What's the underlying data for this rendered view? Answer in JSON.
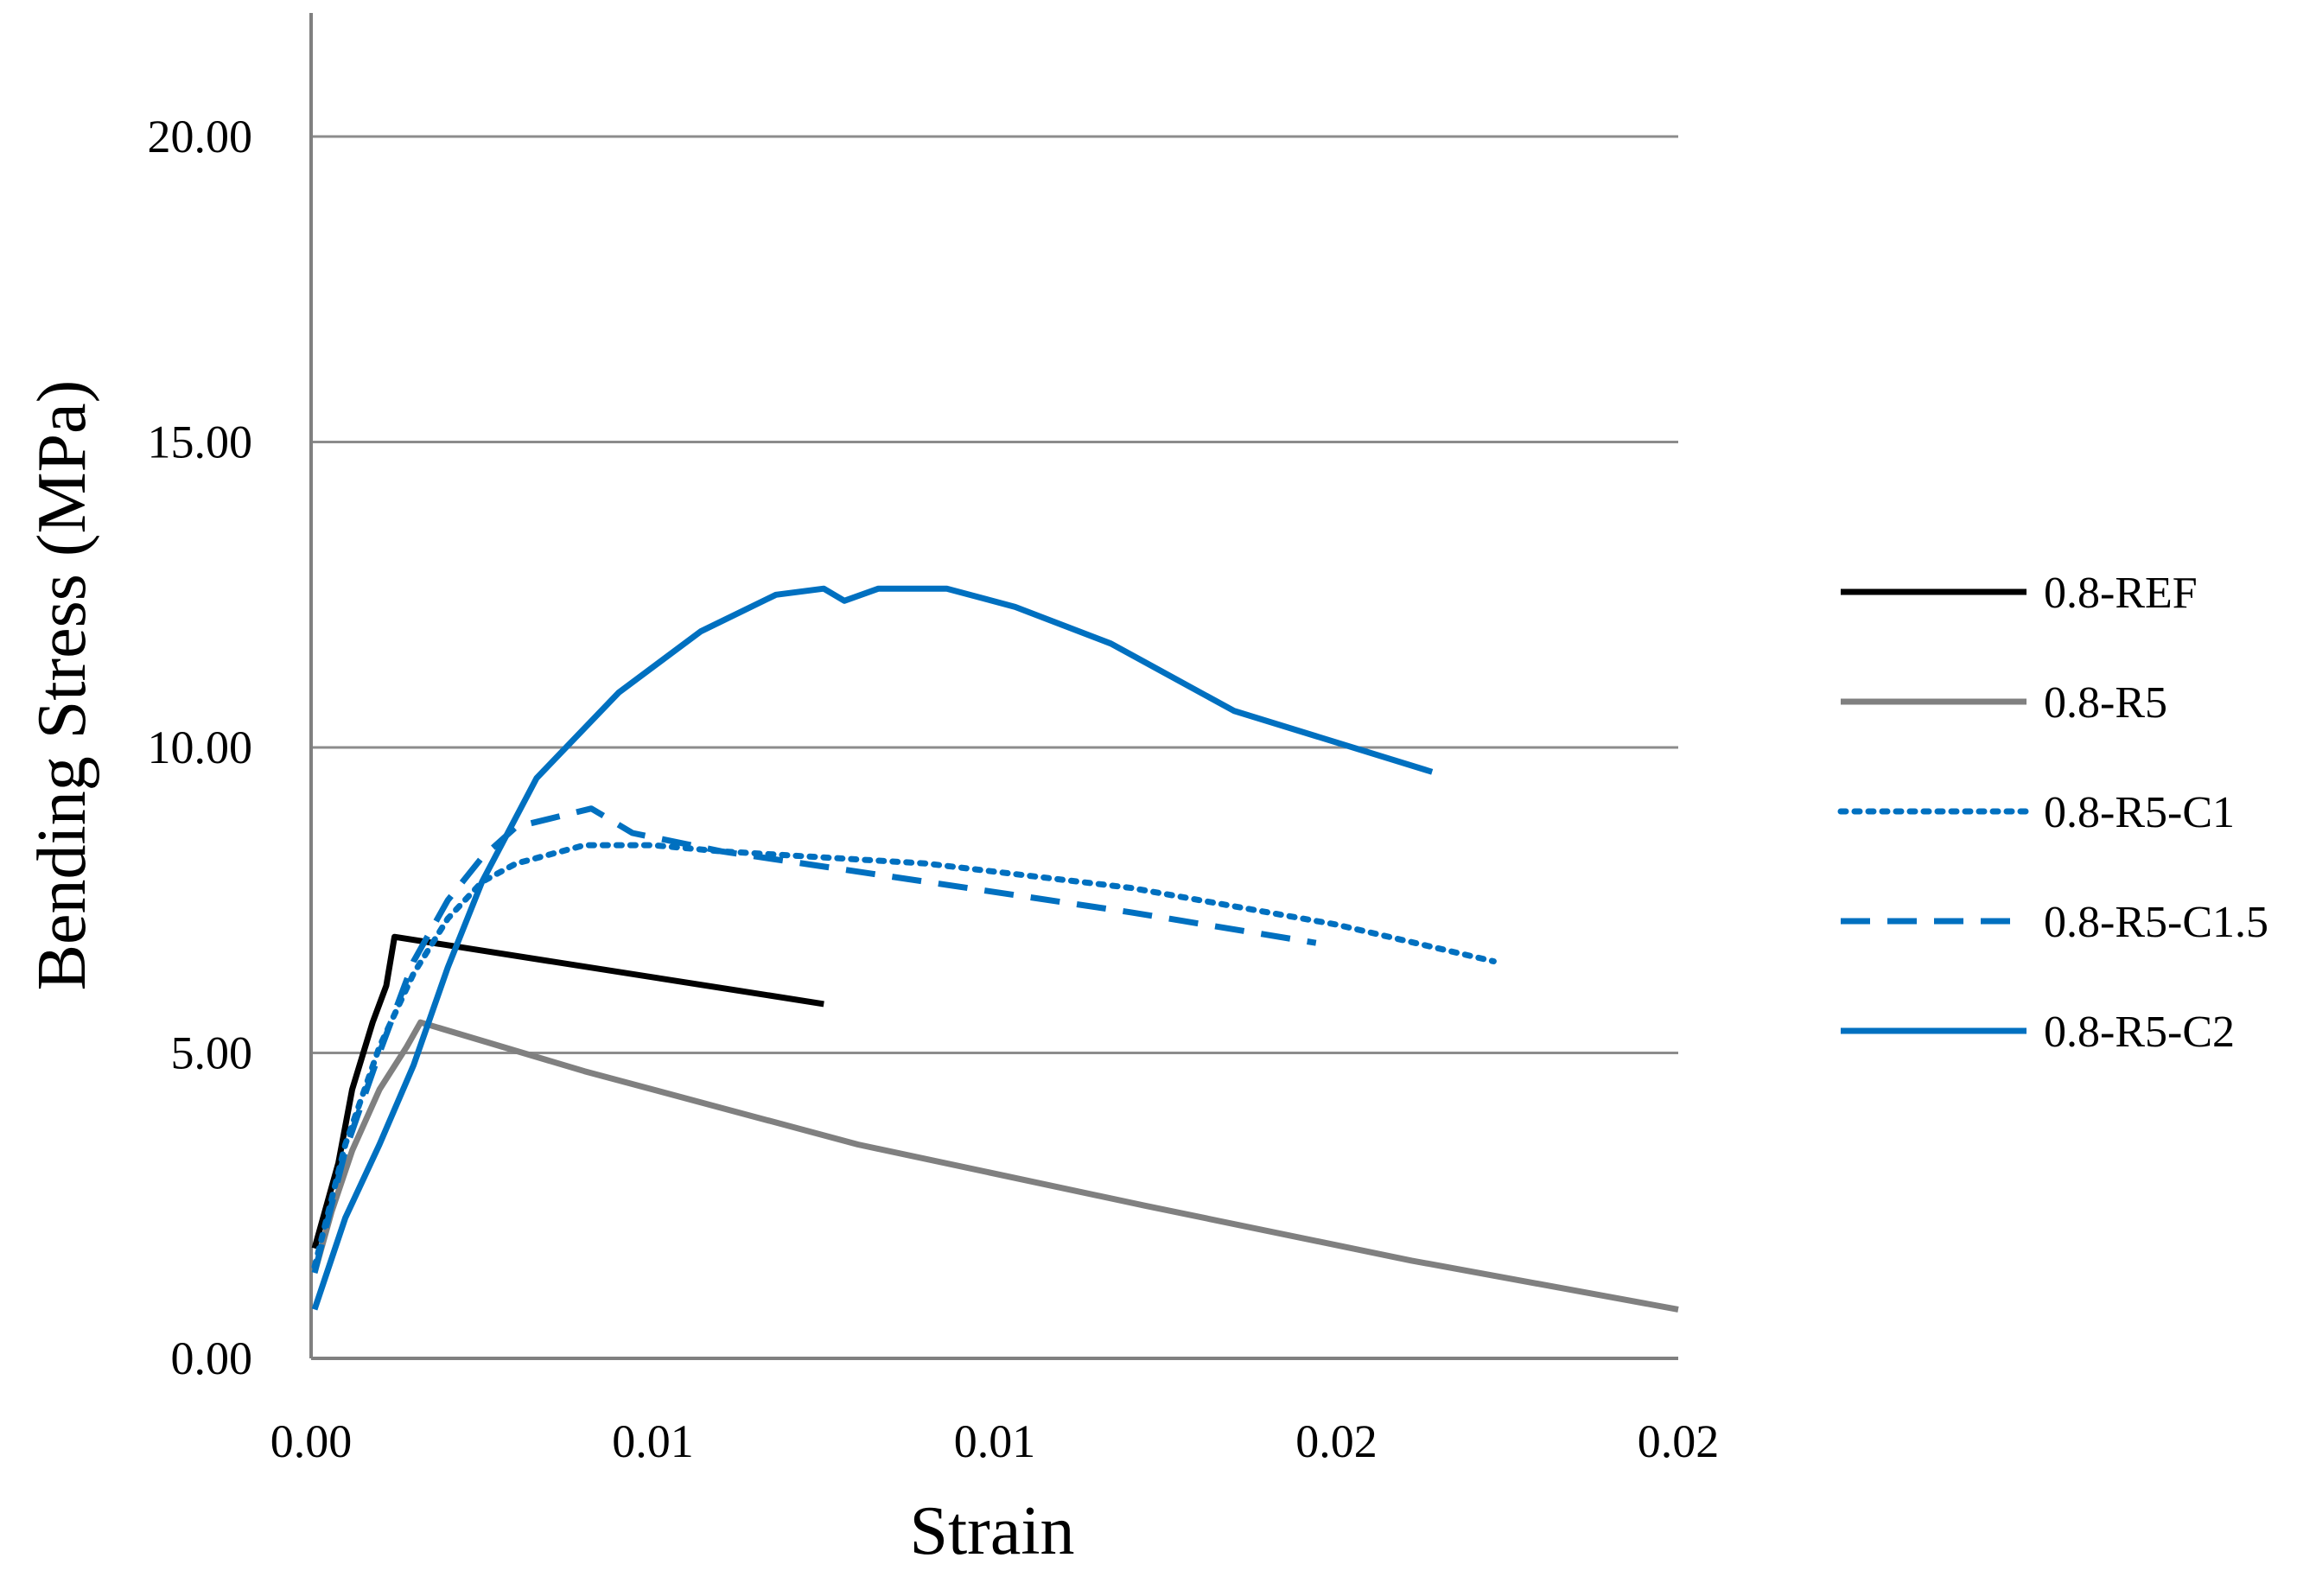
{
  "chart_data": {
    "type": "line",
    "title": "",
    "xlabel": "Strain",
    "ylabel": "Bending Stress (MPa)",
    "xlim": [
      0,
      0.02
    ],
    "ylim": [
      0,
      20
    ],
    "x_tick_values": [
      0,
      0.005,
      0.01,
      0.015,
      0.02
    ],
    "x_tick_labels": [
      "0.00",
      "0.01",
      "0.01",
      "0.02",
      "0.02"
    ],
    "y_tick_values": [
      0,
      5,
      10,
      15,
      20
    ],
    "y_tick_labels": [
      "0.00",
      "5.00",
      "10.00",
      "15.00",
      "20.00"
    ],
    "grid": "horizontal",
    "legend_position": "right",
    "series": [
      {
        "name": "0.8-REF",
        "color": "#000000",
        "style": "solid",
        "points": [
          [
            5e-05,
            1.8
          ],
          [
            0.0004,
            3.2
          ],
          [
            0.0006,
            4.4
          ],
          [
            0.0009,
            5.5
          ],
          [
            0.0011,
            6.1
          ],
          [
            0.00122,
            6.9
          ],
          [
            0.0075,
            5.8
          ]
        ]
      },
      {
        "name": "0.8-R5",
        "color": "#808080",
        "style": "solid",
        "points": [
          [
            5e-05,
            1.4
          ],
          [
            0.0003,
            2.4
          ],
          [
            0.0006,
            3.4
          ],
          [
            0.001,
            4.4
          ],
          [
            0.0014,
            5.1
          ],
          [
            0.0016,
            5.5
          ],
          [
            0.004,
            4.7
          ],
          [
            0.008,
            3.5
          ],
          [
            0.0122,
            2.5
          ],
          [
            0.0161,
            1.6
          ],
          [
            0.02,
            0.8
          ]
        ]
      },
      {
        "name": "0.8-R5-C1",
        "color": "#0070c0",
        "style": "dotted",
        "points": [
          [
            5e-05,
            1.5
          ],
          [
            0.0005,
            3.5
          ],
          [
            0.001,
            5.1
          ],
          [
            0.0015,
            6.3
          ],
          [
            0.002,
            7.2
          ],
          [
            0.0025,
            7.8
          ],
          [
            0.003,
            8.1
          ],
          [
            0.004,
            8.4
          ],
          [
            0.005,
            8.4
          ],
          [
            0.006,
            8.3
          ],
          [
            0.009,
            8.1
          ],
          [
            0.012,
            7.7
          ],
          [
            0.015,
            7.1
          ],
          [
            0.0173,
            6.5
          ]
        ]
      },
      {
        "name": "0.8-R5-C1.5",
        "color": "#0070c0",
        "style": "dashed",
        "points": [
          [
            5e-05,
            1.4
          ],
          [
            0.0005,
            3.4
          ],
          [
            0.001,
            5.0
          ],
          [
            0.0015,
            6.5
          ],
          [
            0.002,
            7.5
          ],
          [
            0.0025,
            8.2
          ],
          [
            0.003,
            8.7
          ],
          [
            0.0041,
            9.0
          ],
          [
            0.0047,
            8.6
          ],
          [
            0.006,
            8.3
          ],
          [
            0.009,
            7.8
          ],
          [
            0.012,
            7.3
          ],
          [
            0.0147,
            6.8
          ]
        ]
      },
      {
        "name": "0.8-R5-C2",
        "color": "#0070c0",
        "style": "solid",
        "points": [
          [
            5e-05,
            0.8
          ],
          [
            0.0005,
            2.3
          ],
          [
            0.001,
            3.5
          ],
          [
            0.0015,
            4.8
          ],
          [
            0.002,
            6.4
          ],
          [
            0.0025,
            7.8
          ],
          [
            0.0033,
            9.5
          ],
          [
            0.0045,
            10.9
          ],
          [
            0.0057,
            11.9
          ],
          [
            0.0068,
            12.5
          ],
          [
            0.0075,
            12.6
          ],
          [
            0.0078,
            12.4
          ],
          [
            0.0083,
            12.6
          ],
          [
            0.0093,
            12.6
          ],
          [
            0.0103,
            12.3
          ],
          [
            0.0117,
            11.7
          ],
          [
            0.0135,
            10.6
          ],
          [
            0.0164,
            9.6
          ]
        ]
      }
    ]
  }
}
